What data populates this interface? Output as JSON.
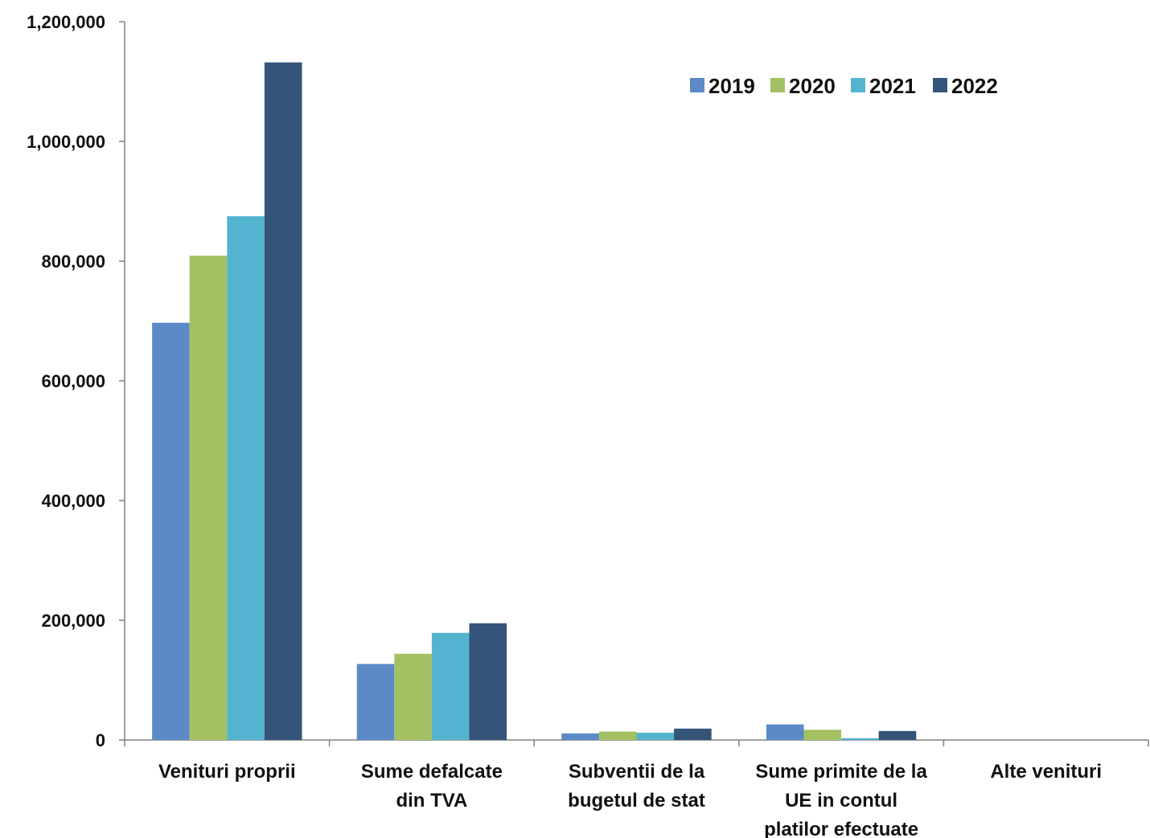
{
  "chart_data": {
    "type": "bar",
    "title": "",
    "xlabel": "",
    "ylabel": "",
    "ylim": [
      0,
      1200000
    ],
    "yticks": [
      0,
      200000,
      400000,
      600000,
      800000,
      1000000,
      1200000
    ],
    "ytick_labels": [
      "0",
      "200,000",
      "400,000",
      "600,000",
      "800,000",
      "1,000,000",
      "1,200,000"
    ],
    "grid": false,
    "legend_position": "top-right",
    "categories": [
      [
        "Venituri proprii"
      ],
      [
        "Sume defalcate",
        "din TVA"
      ],
      [
        "Subventii de la",
        "bugetul de stat"
      ],
      [
        "Sume primite de la",
        "UE in contul",
        "platilor efectuate"
      ],
      [
        "Alte venituri"
      ]
    ],
    "series": [
      {
        "name": "2019",
        "color": "#5B8AC6",
        "values": [
          697000,
          127000,
          11000,
          26000,
          0
        ]
      },
      {
        "name": "2020",
        "color": "#A3C163",
        "values": [
          809000,
          144000,
          14000,
          17000,
          0
        ]
      },
      {
        "name": "2021",
        "color": "#54B4CF",
        "values": [
          875000,
          179000,
          12000,
          3000,
          0
        ]
      },
      {
        "name": "2022",
        "color": "#345479",
        "values": [
          1132000,
          195000,
          19000,
          15000,
          0
        ]
      }
    ]
  }
}
